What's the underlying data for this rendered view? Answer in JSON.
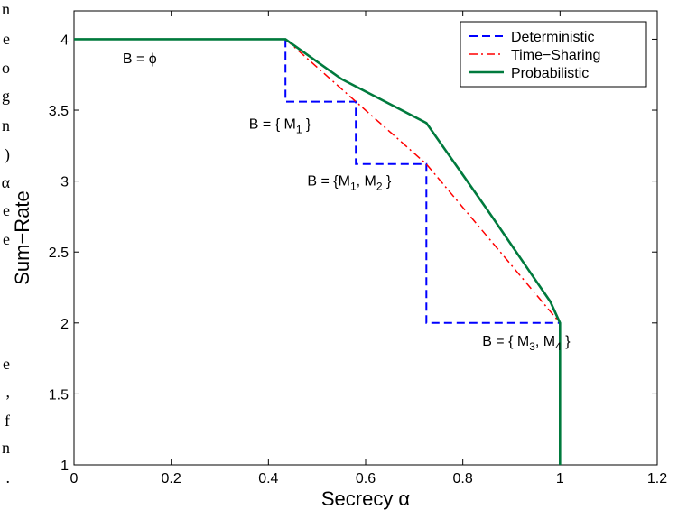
{
  "cropped_margin_text": [
    "n",
    "e",
    "o",
    "g",
    "n",
    ")",
    "α",
    "e",
    "e",
    "e",
    ",",
    "f",
    "n",
    "."
  ],
  "chart_data": {
    "type": "line",
    "xlabel": "Secrecy α",
    "ylabel": "Sum−Rate",
    "xlim": [
      0,
      1.2
    ],
    "ylim": [
      1,
      4.2
    ],
    "x_ticks": [
      0,
      0.2,
      0.4,
      0.6,
      0.8,
      1,
      1.2
    ],
    "y_ticks": [
      1,
      1.5,
      2,
      2.5,
      3,
      3.5,
      4
    ],
    "x_tick_labels": [
      "0",
      "0.2",
      "0.4",
      "0.6",
      "0.8",
      "1",
      "1.2"
    ],
    "y_tick_labels": [
      "1",
      "1.5",
      "2",
      "2.5",
      "3",
      "3.5",
      "4"
    ],
    "grid": false,
    "legend": {
      "placement": "top-right"
    },
    "series": [
      {
        "name": "Deterministic",
        "color": "#0000ff",
        "style": "dashed",
        "x": [
          0.435,
          0.435,
          0.58,
          0.58,
          0.725,
          0.725,
          1.0
        ],
        "y": [
          4.0,
          3.56,
          3.56,
          3.12,
          3.12,
          2.0,
          2.0
        ]
      },
      {
        "name": "Time−Sharing",
        "color": "#ff0000",
        "style": "dashdot",
        "x": [
          0.435,
          0.58,
          0.725,
          1.0
        ],
        "y": [
          4.0,
          3.56,
          3.12,
          2.0
        ]
      },
      {
        "name": "Probabilistic",
        "color": "#007a3d",
        "style": "solid",
        "x": [
          0,
          0.435,
          0.55,
          0.725,
          0.85,
          0.95,
          0.98,
          1.0,
          1.0
        ],
        "y": [
          4.0,
          4.0,
          3.72,
          3.41,
          2.8,
          2.3,
          2.15,
          2.0,
          1.0
        ]
      }
    ],
    "annotations": [
      {
        "text": "B = ϕ",
        "x": 0.1,
        "y": 3.83
      },
      {
        "text": "B = { M",
        "sub": "1",
        "tail": " }",
        "x": 0.36,
        "y": 3.37
      },
      {
        "text": "B = {M",
        "sub": "1",
        "tail": ", M",
        "sub2": "2",
        "tail2": " }",
        "x": 0.48,
        "y": 2.97
      },
      {
        "text": "B = { M",
        "sub": "3",
        "tail": ", M",
        "sub2": "4",
        "tail2": " }",
        "x": 0.84,
        "y": 1.84
      }
    ]
  }
}
